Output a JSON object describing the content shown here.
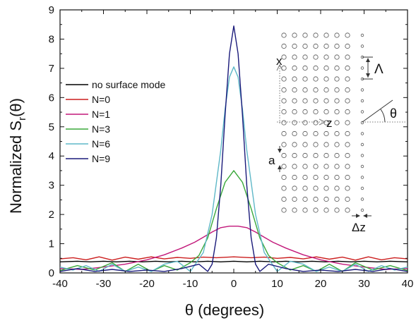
{
  "chart_data": {
    "type": "line",
    "title": "",
    "xlabel": "θ (degrees)",
    "ylabel_main": "Normalized S",
    "ylabel_sub": "r",
    "ylabel_suffix": "(θ)",
    "xlim": [
      -40,
      40
    ],
    "ylim": [
      0,
      9
    ],
    "xticks": [
      -40,
      -30,
      -20,
      -10,
      0,
      10,
      20,
      30,
      40
    ],
    "yticks": [
      0,
      1,
      2,
      3,
      4,
      5,
      6,
      7,
      8,
      9
    ],
    "legend_position": "left",
    "series": [
      {
        "name": "no surface mode",
        "color": "#000000",
        "x": [
          -40,
          -36,
          -33,
          -30,
          -27,
          -24,
          -21,
          -18,
          -15,
          -12,
          -9,
          -6,
          -3,
          0,
          3,
          6,
          9,
          12,
          15,
          18,
          21,
          24,
          27,
          30,
          33,
          36,
          40
        ],
        "y": [
          0.38,
          0.4,
          0.38,
          0.4,
          0.38,
          0.4,
          0.38,
          0.4,
          0.38,
          0.4,
          0.38,
          0.4,
          0.38,
          0.4,
          0.38,
          0.4,
          0.38,
          0.4,
          0.38,
          0.4,
          0.38,
          0.4,
          0.38,
          0.4,
          0.38,
          0.4,
          0.38
        ]
      },
      {
        "name": "N=0",
        "color": "#cc1f1f",
        "x": [
          -40,
          -37,
          -34,
          -31,
          -28,
          -25,
          -22,
          -19,
          -16,
          -13,
          -10,
          -7,
          -4,
          0,
          4,
          7,
          10,
          13,
          16,
          19,
          22,
          25,
          28,
          31,
          34,
          37,
          40
        ],
        "y": [
          0.48,
          0.52,
          0.45,
          0.55,
          0.44,
          0.54,
          0.47,
          0.55,
          0.48,
          0.53,
          0.5,
          0.54,
          0.52,
          0.55,
          0.52,
          0.54,
          0.5,
          0.53,
          0.48,
          0.55,
          0.47,
          0.54,
          0.44,
          0.55,
          0.45,
          0.52,
          0.48
        ]
      },
      {
        "name": "N=1",
        "color": "#c2187a",
        "x": [
          -40,
          -35,
          -30,
          -25,
          -20,
          -16,
          -12,
          -9,
          -7,
          -5,
          -3,
          -1,
          0,
          1,
          3,
          5,
          7,
          9,
          12,
          16,
          20,
          25,
          30,
          35,
          40
        ],
        "y": [
          0.15,
          0.12,
          0.2,
          0.3,
          0.45,
          0.62,
          0.85,
          1.05,
          1.22,
          1.4,
          1.55,
          1.6,
          1.6,
          1.6,
          1.55,
          1.4,
          1.22,
          1.05,
          0.85,
          0.62,
          0.45,
          0.3,
          0.2,
          0.12,
          0.15
        ]
      },
      {
        "name": "N=3",
        "color": "#3aa83a",
        "x": [
          -40,
          -36,
          -32,
          -28,
          -25,
          -22,
          -19,
          -16,
          -13,
          -10,
          -8,
          -6,
          -4,
          -2,
          0,
          2,
          4,
          6,
          8,
          10,
          13,
          16,
          19,
          22,
          25,
          28,
          32,
          36,
          40
        ],
        "y": [
          0.08,
          0.25,
          0.1,
          0.35,
          0.05,
          0.3,
          0.05,
          0.25,
          0.1,
          0.35,
          0.6,
          1.2,
          2.2,
          3.1,
          3.5,
          3.1,
          2.2,
          1.2,
          0.6,
          0.35,
          0.1,
          0.25,
          0.05,
          0.3,
          0.05,
          0.35,
          0.1,
          0.25,
          0.08
        ]
      },
      {
        "name": "N=6",
        "color": "#5fb8c8",
        "x": [
          -40,
          -37,
          -34,
          -31,
          -28,
          -25,
          -22,
          -19,
          -16,
          -13,
          -10,
          -7,
          -5,
          -3,
          -2,
          -1,
          0,
          1,
          2,
          3,
          5,
          7,
          10,
          13,
          16,
          19,
          22,
          25,
          28,
          31,
          34,
          37,
          40
        ],
        "y": [
          0.2,
          0.1,
          0.25,
          0.05,
          0.3,
          0.05,
          0.2,
          0.05,
          0.3,
          0.4,
          0.05,
          0.7,
          2.0,
          4.2,
          5.6,
          6.7,
          7.05,
          6.7,
          5.6,
          4.2,
          2.0,
          0.7,
          0.05,
          0.4,
          0.3,
          0.05,
          0.2,
          0.05,
          0.3,
          0.05,
          0.25,
          0.1,
          0.2
        ]
      },
      {
        "name": "N=9",
        "color": "#1a1a7a",
        "x": [
          -40,
          -36,
          -32,
          -28,
          -24,
          -20,
          -16,
          -12,
          -8,
          -6,
          -5,
          -4,
          -3,
          -2,
          -1,
          0,
          1,
          2,
          3,
          4,
          5,
          6,
          8,
          12,
          16,
          20,
          24,
          28,
          32,
          36,
          40
        ],
        "y": [
          0.05,
          0.15,
          0.05,
          0.12,
          0.05,
          0.1,
          0.05,
          0.15,
          0.3,
          0.05,
          0.3,
          1.2,
          3.0,
          5.4,
          7.5,
          8.45,
          7.5,
          5.4,
          3.0,
          1.2,
          0.3,
          0.05,
          0.3,
          0.15,
          0.05,
          0.1,
          0.05,
          0.12,
          0.05,
          0.15,
          0.05
        ]
      }
    ],
    "inset": {
      "labels": [
        "x",
        "z",
        "Λ",
        "θ",
        "a",
        "Δz"
      ]
    }
  }
}
